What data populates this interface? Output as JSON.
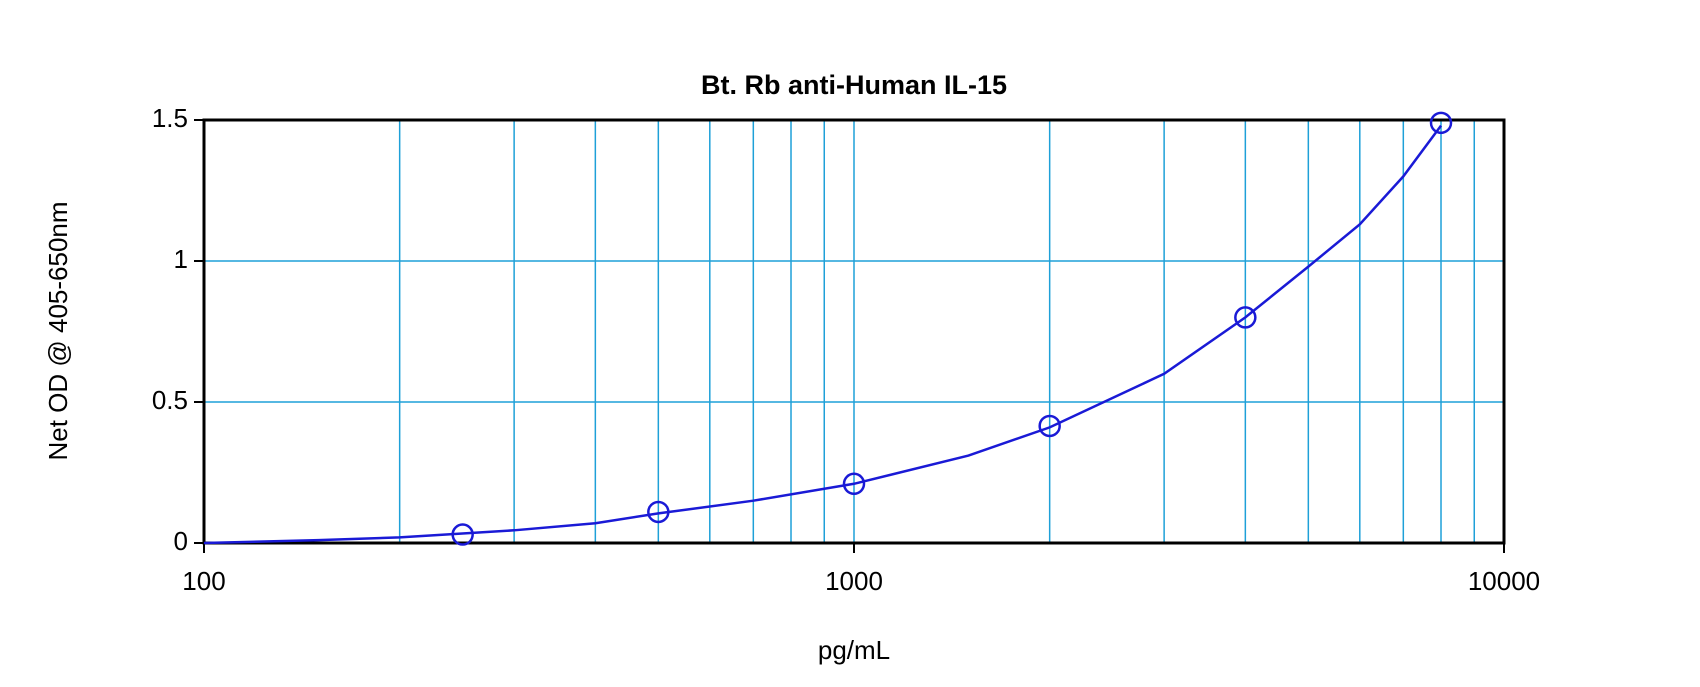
{
  "chart_data": {
    "type": "scatter",
    "title": "Bt. Rb anti-Human IL-15",
    "xlabel": "pg/mL",
    "ylabel": "Net OD @ 405-650nm",
    "xscale": "log",
    "xlim": [
      100,
      10000
    ],
    "ylim": [
      0,
      1.5
    ],
    "xticks": [
      100,
      1000,
      10000
    ],
    "xminor": [
      200,
      300,
      400,
      500,
      600,
      700,
      800,
      900,
      2000,
      3000,
      4000,
      5000,
      6000,
      7000,
      8000,
      9000
    ],
    "yticks": [
      0,
      0.5,
      1,
      1.5
    ],
    "grid": true,
    "grid_color": "#1ea0d8",
    "series": [
      {
        "color": "#1a1ad6",
        "marker": "circle",
        "x": [
          250,
          500,
          1000,
          2000,
          4000,
          8000
        ],
        "values": [
          0.03,
          0.11,
          0.21,
          0.415,
          0.8,
          1.49
        ]
      },
      {
        "color": "#1a1ad6",
        "marker": "line",
        "x": [
          100,
          150,
          200,
          300,
          400,
          500,
          700,
          1000,
          1500,
          2000,
          3000,
          4000,
          5000,
          6000,
          7000,
          8000
        ],
        "values": [
          0,
          0.01,
          0.02,
          0.045,
          0.07,
          0.105,
          0.15,
          0.21,
          0.31,
          0.41,
          0.6,
          0.8,
          0.98,
          1.13,
          1.3,
          1.48
        ]
      }
    ]
  }
}
